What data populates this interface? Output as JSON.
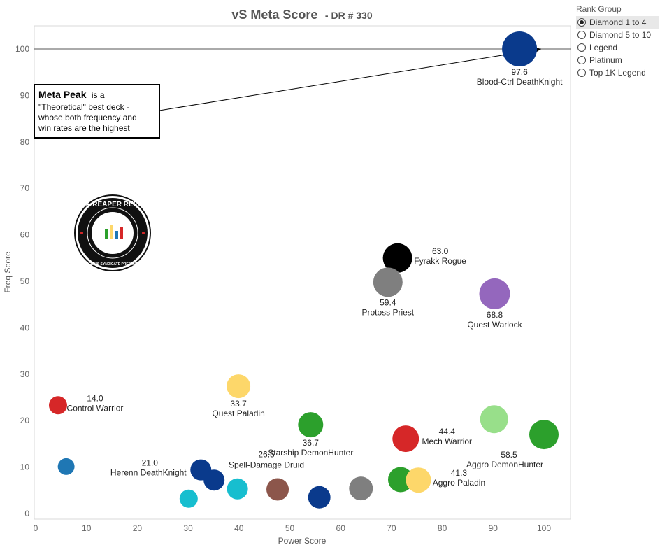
{
  "title": {
    "main": "vS Meta Score",
    "sub": "- DR # 330"
  },
  "legend": {
    "title": "Rank Group",
    "options": [
      "Diamond 1 to 4",
      "Diamond 5 to 10",
      "Legend",
      "Platinum",
      "Top 1K Legend"
    ],
    "selected_index": 0
  },
  "annotation": {
    "bold": "Meta Peak",
    "lines": [
      "is a",
      "\"Theoretical\" best deck -",
      "whose both frequency and",
      "win rates are the highest"
    ],
    "target": {
      "x": 100,
      "y": 100
    }
  },
  "logo": {
    "text": "DATA REAPER REPORT",
    "subtext": "VICIOUS SYNDICATE PRESENTS",
    "icon": "bar-chart-icon"
  },
  "chart_data": {
    "type": "scatter",
    "title": "vS Meta Score - DR # 330",
    "xlabel": "Power Score",
    "ylabel": "Freq Score",
    "xlim": [
      0,
      105
    ],
    "ylim": [
      0,
      105
    ],
    "xticks": [
      0,
      10,
      20,
      30,
      40,
      50,
      60,
      70,
      80,
      90,
      100
    ],
    "yticks": [
      0,
      10,
      20,
      30,
      40,
      50,
      60,
      70,
      80,
      90,
      100
    ],
    "reference_line_y": 100,
    "grid": false,
    "points": [
      {
        "name": "Blood-Ctrl DeathKnight",
        "x": 95.2,
        "y": 100,
        "score": "97.6",
        "color": "#0a3a8c",
        "size": 50,
        "label": "below"
      },
      {
        "name": "Fyrakk Rogue",
        "x": 71.2,
        "y": 55,
        "score": "63.0",
        "color": "#000000",
        "size": 42,
        "label": "right"
      },
      {
        "name": "Protoss Priest",
        "x": 69.3,
        "y": 49.8,
        "score": "59.4",
        "color": "#7f7f7f",
        "size": 42,
        "label": "below"
      },
      {
        "name": "Quest Warlock",
        "x": 90.3,
        "y": 47.3,
        "score": "68.8",
        "color": "#9467bd",
        "size": 44,
        "label": "below"
      },
      {
        "name": "Quest Paladin",
        "x": 39.9,
        "y": 27.4,
        "score": "33.7",
        "color": "#fdd76a",
        "size": 34,
        "label": "below"
      },
      {
        "name": "Control Warrior",
        "x": 4.4,
        "y": 23.3,
        "score": "14.0",
        "color": "#d62728",
        "size": 26,
        "label": "right"
      },
      {
        "name": "Starship DemonHunter",
        "x": 54.1,
        "y": 19.1,
        "score": "36.7",
        "color": "#2ca02c",
        "size": 36,
        "label": "below"
      },
      {
        "name": "Mech Warrior",
        "x": 72.8,
        "y": 16.1,
        "score": "44.4",
        "color": "#d62728",
        "size": 38,
        "label": "right"
      },
      {
        "name": "Aggro DemonHunter",
        "x": 100,
        "y": 17,
        "score": "58.5",
        "color": "#2ca02c",
        "size": 42,
        "label": "below-left"
      },
      {
        "name": "",
        "x": 90.2,
        "y": 20.3,
        "score": "",
        "color": "#98df8a",
        "size": 40,
        "label": "none"
      },
      {
        "name": "",
        "x": 6,
        "y": 10.1,
        "score": "",
        "color": "#1f77b4",
        "size": 24,
        "label": "none"
      },
      {
        "name": "Herenn DeathKnight",
        "x": 32.5,
        "y": 9.4,
        "score": "21.0",
        "color": "#0a3a8c",
        "size": 30,
        "label": "left"
      },
      {
        "name": "",
        "x": 35.1,
        "y": 7.2,
        "score": "",
        "color": "#0a3a8c",
        "size": 30,
        "label": "none"
      },
      {
        "name": "",
        "x": 30.1,
        "y": 3.2,
        "score": "",
        "color": "#17becf",
        "size": 26,
        "label": "none"
      },
      {
        "name": "",
        "x": 39.7,
        "y": 5.3,
        "score": "",
        "color": "#17becf",
        "size": 30,
        "label": "none"
      },
      {
        "name": "Spell-Damage Druid",
        "x": 47.6,
        "y": 5.2,
        "score": "26.5",
        "color": "#8c564b",
        "size": 32,
        "label": "above"
      },
      {
        "name": "",
        "x": 55.8,
        "y": 3.5,
        "score": "",
        "color": "#0a3a8c",
        "size": 32,
        "label": "none"
      },
      {
        "name": "",
        "x": 64,
        "y": 5.4,
        "score": "",
        "color": "#7f7f7f",
        "size": 34,
        "label": "none"
      },
      {
        "name": "",
        "x": 71.8,
        "y": 7.3,
        "score": "",
        "color": "#2ca02c",
        "size": 36,
        "label": "none"
      },
      {
        "name": "Aggro Paladin",
        "x": 75.3,
        "y": 7.2,
        "score": "41.3",
        "color": "#fdd76a",
        "size": 36,
        "label": "right"
      }
    ]
  }
}
